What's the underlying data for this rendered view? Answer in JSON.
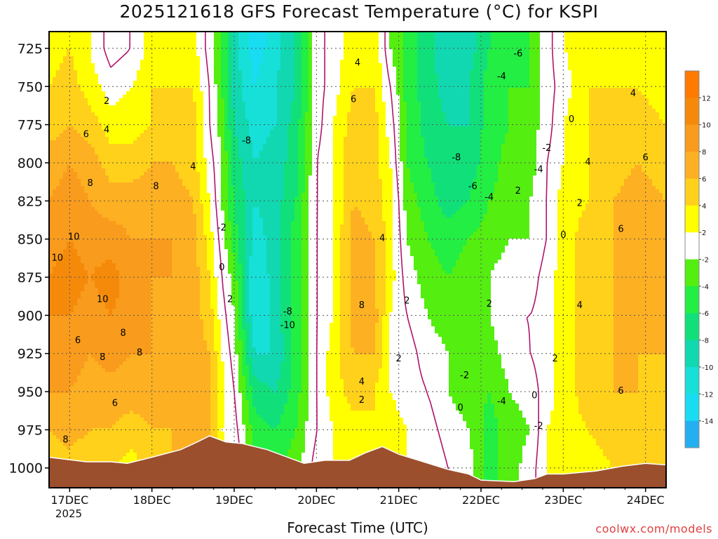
{
  "title": "2025121618 GFS Forecast Temperature (°C) for KSPI",
  "credit": "coolwx.com/models",
  "colors": {
    "terrain": "#9c4f2d",
    "freezing_line": "#b0136b",
    "frame": "#000000"
  },
  "chart_data": {
    "type": "heatmap",
    "title": "2025121618 GFS Forecast Temperature (°C) for KSPI",
    "xlabel": "Forecast Time (UTC)",
    "ylabel": "",
    "x_ticks": [
      "17DEC",
      "18DEC",
      "19DEC",
      "20DEC",
      "21DEC",
      "22DEC",
      "23DEC",
      "24DEC"
    ],
    "x_sublabel": "2025",
    "x_range_days": [
      16.75,
      24.25
    ],
    "y_ticks": [
      725,
      750,
      775,
      800,
      825,
      850,
      875,
      900,
      925,
      950,
      975,
      1000
    ],
    "y_range_hPa": [
      714,
      1013
    ],
    "y_scale": "linear-inverted",
    "grid": true,
    "colorbar": {
      "labels": [
        "12",
        "10",
        "8",
        "6",
        "4",
        "2",
        "-2",
        "-4",
        "-6",
        "-8",
        "-10",
        "-12",
        "-14"
      ],
      "bins": [
        {
          "from": 12,
          "to": 14,
          "color": "#ff7a00"
        },
        {
          "from": 10,
          "to": 12,
          "color": "#f58a0a"
        },
        {
          "from": 8,
          "to": 10,
          "color": "#f99b1c"
        },
        {
          "from": 6,
          "to": 8,
          "color": "#fdb022"
        },
        {
          "from": 4,
          "to": 6,
          "color": "#ffd11a"
        },
        {
          "from": 2,
          "to": 4,
          "color": "#ffff00"
        },
        {
          "from": -2,
          "to": 2,
          "color": "#ffffff"
        },
        {
          "from": -4,
          "to": -2,
          "color": "#55ee11"
        },
        {
          "from": -6,
          "to": -4,
          "color": "#22ee44"
        },
        {
          "from": -8,
          "to": -6,
          "color": "#11e07a"
        },
        {
          "from": -10,
          "to": -8,
          "color": "#11d8b0"
        },
        {
          "from": -12,
          "to": -10,
          "color": "#16e0d8"
        },
        {
          "from": -14,
          "to": -12,
          "color": "#19dcf2"
        },
        {
          "from": -16,
          "to": -14,
          "color": "#24b0f0"
        }
      ]
    },
    "columns": [
      {
        "t": 16.75,
        "T": [
          3,
          4,
          5,
          7,
          8,
          9,
          10,
          10,
          9,
          8,
          6,
          4
        ]
      },
      {
        "t": 17.0,
        "T": [
          4,
          5,
          6,
          8,
          9,
          10,
          11,
          10,
          9,
          8,
          7,
          5
        ]
      },
      {
        "t": 17.25,
        "T": [
          2,
          3,
          5,
          7,
          8,
          9,
          10,
          9,
          8,
          7,
          6,
          4
        ]
      },
      {
        "t": 17.5,
        "T": [
          -1,
          1,
          3,
          5,
          7,
          9,
          11,
          10,
          9,
          7,
          6,
          4
        ]
      },
      {
        "t": 17.75,
        "T": [
          0,
          2,
          3,
          5,
          7,
          8,
          9,
          9,
          8,
          7,
          5,
          3
        ]
      },
      {
        "t": 18.0,
        "T": [
          3,
          4,
          4,
          6,
          7,
          8,
          8,
          8,
          8,
          7,
          6,
          5
        ]
      },
      {
        "t": 18.25,
        "T": [
          4,
          4,
          5,
          6,
          7,
          8,
          8,
          7,
          7,
          7,
          6,
          6
        ]
      },
      {
        "t": 18.5,
        "T": [
          3,
          4,
          5,
          5,
          6,
          7,
          7,
          7,
          7,
          7,
          7,
          7
        ]
      },
      {
        "t": 18.7,
        "T": [
          -1,
          0,
          0,
          1,
          2,
          3,
          4,
          5,
          6,
          6,
          6,
          7
        ]
      },
      {
        "t": 18.85,
        "T": [
          -4,
          -4,
          -3,
          -2,
          -2,
          -1,
          0,
          1,
          2,
          3,
          2,
          3
        ]
      },
      {
        "t": 19.0,
        "T": [
          -9,
          -9,
          -8,
          -7,
          -6,
          -5,
          -3,
          -2,
          -1,
          0,
          1,
          2
        ]
      },
      {
        "t": 19.25,
        "T": [
          -13,
          -12,
          -11,
          -10,
          -10,
          -11,
          -12,
          -12,
          -10,
          -7,
          -5,
          -3
        ]
      },
      {
        "t": 19.5,
        "T": [
          -11,
          -10,
          -10,
          -9,
          -9,
          -9,
          -9,
          -9,
          -10,
          -8,
          -6,
          -4
        ]
      },
      {
        "t": 19.75,
        "T": [
          -8,
          -8,
          -7,
          -7,
          -6,
          -5,
          -5,
          -5,
          -5,
          -5,
          -4,
          -3
        ]
      },
      {
        "t": 20.0,
        "T": [
          -1,
          -1,
          -1,
          0,
          0,
          0,
          0,
          0,
          0,
          0,
          0,
          1
        ]
      },
      {
        "t": 20.2,
        "T": [
          1,
          1,
          2,
          2,
          2,
          2,
          2,
          2,
          3,
          3,
          2,
          2
        ]
      },
      {
        "t": 20.45,
        "T": [
          3,
          4,
          5,
          6,
          6,
          7,
          7,
          7,
          6,
          5,
          3,
          2
        ]
      },
      {
        "t": 20.7,
        "T": [
          4,
          4,
          5,
          5,
          5,
          6,
          6,
          7,
          6,
          4,
          4,
          3
        ]
      },
      {
        "t": 20.9,
        "T": [
          -2,
          0,
          1,
          2,
          3,
          3,
          3,
          2,
          2,
          2,
          3,
          2
        ]
      },
      {
        "t": 21.1,
        "T": [
          -5,
          -5,
          -4,
          -4,
          -3,
          -2,
          -1,
          0,
          1,
          1,
          2,
          2
        ]
      },
      {
        "t": 21.35,
        "T": [
          -7,
          -7,
          -7,
          -6,
          -5,
          -4,
          -3,
          -2,
          -1,
          0,
          1,
          2
        ]
      },
      {
        "t": 21.6,
        "T": [
          -10,
          -9,
          -8,
          -8,
          -7,
          -5,
          -4,
          -3,
          -2,
          -2,
          -1,
          0
        ]
      },
      {
        "t": 21.85,
        "T": [
          -9,
          -8,
          -8,
          -7,
          -6,
          -4,
          -3,
          -3,
          -3,
          -3,
          -2,
          -1
        ]
      },
      {
        "t": 22.1,
        "T": [
          -6,
          -5,
          -5,
          -5,
          -4,
          -3,
          -2,
          -2,
          -3,
          -4,
          -5,
          -5
        ]
      },
      {
        "t": 22.35,
        "T": [
          -5,
          -4,
          -4,
          -3,
          -3,
          -2,
          -1,
          0,
          -1,
          -2,
          -3,
          -3
        ]
      },
      {
        "t": 22.6,
        "T": [
          -4,
          -4,
          -3,
          -3,
          -2,
          -2,
          -1,
          0,
          0,
          -1,
          -2,
          -1
        ]
      },
      {
        "t": 22.8,
        "T": [
          -1,
          -1,
          -1,
          0,
          0,
          0,
          1,
          1,
          1,
          1,
          2,
          2
        ]
      },
      {
        "t": 23.0,
        "T": [
          2,
          1,
          2,
          2,
          3,
          3,
          3,
          3,
          3,
          3,
          3,
          3
        ]
      },
      {
        "t": 23.3,
        "T": [
          3,
          4,
          4,
          4,
          4,
          5,
          5,
          5,
          5,
          5,
          4,
          3
        ]
      },
      {
        "t": 23.6,
        "T": [
          4,
          4,
          5,
          5,
          6,
          6,
          6,
          6,
          6,
          6,
          5,
          4
        ]
      },
      {
        "t": 23.9,
        "T": [
          3,
          4,
          5,
          6,
          7,
          7,
          7,
          7,
          6,
          6,
          5,
          5
        ]
      },
      {
        "t": 24.25,
        "T": [
          2,
          3,
          4,
          5,
          6,
          6,
          6,
          6,
          6,
          5,
          5,
          4
        ]
      }
    ],
    "surface_pressure": [
      {
        "t": 16.75,
        "p": 993
      },
      {
        "t": 17.2,
        "p": 996
      },
      {
        "t": 17.5,
        "p": 996
      },
      {
        "t": 17.7,
        "p": 997
      },
      {
        "t": 18.0,
        "p": 993
      },
      {
        "t": 18.35,
        "p": 988
      },
      {
        "t": 18.55,
        "p": 983
      },
      {
        "t": 18.7,
        "p": 979
      },
      {
        "t": 18.9,
        "p": 983
      },
      {
        "t": 19.1,
        "p": 984
      },
      {
        "t": 19.4,
        "p": 988
      },
      {
        "t": 19.7,
        "p": 994
      },
      {
        "t": 19.85,
        "p": 997
      },
      {
        "t": 20.1,
        "p": 995
      },
      {
        "t": 20.4,
        "p": 995
      },
      {
        "t": 20.6,
        "p": 990
      },
      {
        "t": 20.8,
        "p": 986
      },
      {
        "t": 21.0,
        "p": 991
      },
      {
        "t": 21.3,
        "p": 996
      },
      {
        "t": 21.6,
        "p": 1001
      },
      {
        "t": 21.85,
        "p": 1004
      },
      {
        "t": 22.0,
        "p": 1008
      },
      {
        "t": 22.4,
        "p": 1009
      },
      {
        "t": 22.65,
        "p": 1007
      },
      {
        "t": 22.8,
        "p": 1004
      },
      {
        "t": 23.0,
        "p": 1004
      },
      {
        "t": 23.4,
        "p": 1002
      },
      {
        "t": 23.7,
        "p": 999
      },
      {
        "t": 24.0,
        "p": 997
      },
      {
        "t": 24.25,
        "p": 998
      }
    ],
    "contour_labels": [
      {
        "t": 17.45,
        "p": 759,
        "text": "2"
      },
      {
        "t": 17.45,
        "p": 778,
        "text": "4"
      },
      {
        "t": 17.2,
        "p": 781,
        "text": "6"
      },
      {
        "t": 17.25,
        "p": 813,
        "text": "8"
      },
      {
        "t": 17.05,
        "p": 848,
        "text": "10"
      },
      {
        "t": 16.85,
        "p": 862,
        "text": "10"
      },
      {
        "t": 17.4,
        "p": 889,
        "text": "10"
      },
      {
        "t": 17.1,
        "p": 916,
        "text": "6"
      },
      {
        "t": 17.65,
        "p": 911,
        "text": "8"
      },
      {
        "t": 17.85,
        "p": 924,
        "text": "8"
      },
      {
        "t": 17.4,
        "p": 927,
        "text": "8"
      },
      {
        "t": 17.55,
        "p": 957,
        "text": "6"
      },
      {
        "t": 16.95,
        "p": 981,
        "text": "8"
      },
      {
        "t": 18.05,
        "p": 815,
        "text": "8"
      },
      {
        "t": 18.5,
        "p": 802,
        "text": "4"
      },
      {
        "t": 18.85,
        "p": 842,
        "text": "-2"
      },
      {
        "t": 18.85,
        "p": 868,
        "text": "0"
      },
      {
        "t": 18.95,
        "p": 889,
        "text": "2"
      },
      {
        "t": 19.15,
        "p": 785,
        "text": "-8"
      },
      {
        "t": 19.65,
        "p": 897,
        "text": "-8"
      },
      {
        "t": 19.65,
        "p": 906,
        "text": "-10"
      },
      {
        "t": 20.5,
        "p": 734,
        "text": "4"
      },
      {
        "t": 20.45,
        "p": 758,
        "text": "6"
      },
      {
        "t": 20.8,
        "p": 849,
        "text": "4"
      },
      {
        "t": 20.55,
        "p": 893,
        "text": "8"
      },
      {
        "t": 21.1,
        "p": 890,
        "text": "2"
      },
      {
        "t": 21.0,
        "p": 928,
        "text": "2"
      },
      {
        "t": 20.55,
        "p": 943,
        "text": "4"
      },
      {
        "t": 20.55,
        "p": 955,
        "text": "2"
      },
      {
        "t": 21.7,
        "p": 796,
        "text": "-8"
      },
      {
        "t": 21.9,
        "p": 815,
        "text": "-6"
      },
      {
        "t": 22.1,
        "p": 822,
        "text": "-4"
      },
      {
        "t": 22.25,
        "p": 743,
        "text": "-4"
      },
      {
        "t": 22.45,
        "p": 728,
        "text": "-6"
      },
      {
        "t": 22.45,
        "p": 818,
        "text": "2"
      },
      {
        "t": 22.8,
        "p": 790,
        "text": "-2"
      },
      {
        "t": 22.7,
        "p": 804,
        "text": "-4"
      },
      {
        "t": 23.1,
        "p": 771,
        "text": "0"
      },
      {
        "t": 23.3,
        "p": 799,
        "text": "4"
      },
      {
        "t": 23.2,
        "p": 826,
        "text": "2"
      },
      {
        "t": 23.0,
        "p": 847,
        "text": "0"
      },
      {
        "t": 23.2,
        "p": 893,
        "text": "4"
      },
      {
        "t": 22.1,
        "p": 892,
        "text": "2"
      },
      {
        "t": 21.8,
        "p": 939,
        "text": "-2"
      },
      {
        "t": 21.75,
        "p": 960,
        "text": "0"
      },
      {
        "t": 22.25,
        "p": 956,
        "text": "-4"
      },
      {
        "t": 22.7,
        "p": 972,
        "text": "-2"
      },
      {
        "t": 22.65,
        "p": 952,
        "text": "0"
      },
      {
        "t": 22.9,
        "p": 928,
        "text": "2"
      },
      {
        "t": 23.7,
        "p": 949,
        "text": "6"
      },
      {
        "t": 23.85,
        "p": 754,
        "text": "4"
      },
      {
        "t": 24.0,
        "p": 796,
        "text": "6"
      },
      {
        "t": 23.7,
        "p": 843,
        "text": "6"
      }
    ]
  }
}
